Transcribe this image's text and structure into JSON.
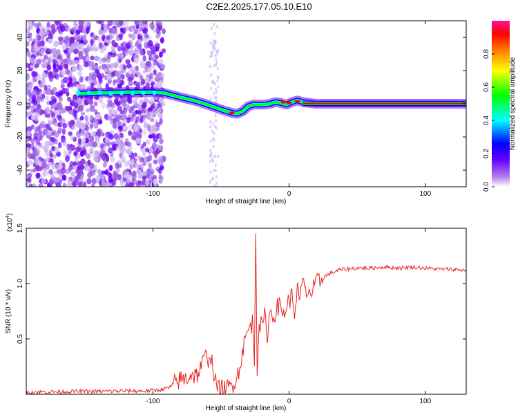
{
  "title": "C2E2.2025.177.05.10.E10",
  "chart_data": [
    {
      "type": "heatmap",
      "title": "C2E2.2025.177.05.10.E10",
      "xlabel": "Height of straight line (km)",
      "ylabel": "Frequency (Hz)",
      "xlim": [
        -193,
        130
      ],
      "ylim": [
        -50,
        50
      ],
      "x_ticks": [
        -100,
        0,
        100
      ],
      "x_tick_labels": [
        "-100",
        "0",
        "100"
      ],
      "y_ticks": [
        -40,
        -20,
        0,
        20,
        40
      ],
      "y_tick_labels": [
        "-40",
        "-20",
        "0",
        "20",
        "40"
      ],
      "colorbar": {
        "label": "Normalized spectral amplitude",
        "range": [
          0,
          1
        ],
        "ticks": [
          0.0,
          0.2,
          0.4,
          0.6,
          0.8
        ],
        "tick_labels": [
          "0.0",
          "0.2",
          "0.4",
          "0.6",
          "0.8"
        ],
        "colormap": [
          "#ffffff",
          "#8a2be2",
          "#0000ff",
          "#00ffff",
          "#00ff00",
          "#ffff00",
          "#ff8000",
          "#ff0000",
          "#ff1493"
        ]
      },
      "ridge": {
        "x": [
          -155,
          -140,
          -120,
          -100,
          -92,
          -85,
          -78,
          -70,
          -62,
          -55,
          -48,
          -42,
          -38,
          -34,
          -30,
          -26,
          -22,
          -18,
          -14,
          -10,
          -6,
          -2,
          2,
          6,
          10,
          20,
          40,
          60,
          80,
          100,
          120,
          130
        ],
        "y": [
          6,
          6.5,
          7,
          7,
          6.5,
          5,
          3.5,
          2,
          0,
          -2,
          -4,
          -5.5,
          -6,
          -4.5,
          -1.5,
          -0.5,
          -0.5,
          -0.5,
          0,
          1,
          0.5,
          -0.5,
          1,
          2,
          1,
          0,
          0,
          0,
          0,
          0,
          0,
          0
        ]
      },
      "grid": false
    },
    {
      "type": "line",
      "xlabel": "Height of straight line (km)",
      "ylabel": "SNR (10 * v/v)",
      "y_multiplier_label": "(x10",
      "y_multiplier_exp": "4",
      "xlim": [
        -193,
        130
      ],
      "ylim": [
        0,
        1.5
      ],
      "x_ticks": [
        -100,
        0,
        100
      ],
      "x_tick_labels": [
        "-100",
        "0",
        "100"
      ],
      "y_ticks": [
        0.5,
        1.0,
        1.5
      ],
      "y_tick_labels": [
        "0.5",
        "1.0",
        "1.5"
      ],
      "series": [
        {
          "color": "#e8231f",
          "x": [
            -193,
            -180,
            -160,
            -140,
            -120,
            -105,
            -95,
            -88,
            -84,
            -80,
            -76,
            -72,
            -68,
            -64,
            -62,
            -60,
            -58,
            -56,
            -54,
            -52,
            -48,
            -44,
            -40,
            -37,
            -35,
            -33,
            -31,
            -29,
            -27,
            -25.5,
            -24.5,
            -23.5,
            -22,
            -20,
            -18,
            -16,
            -14,
            -12,
            -10,
            -8,
            -6,
            -4,
            -2,
            0,
            2,
            4,
            6,
            8,
            10,
            12,
            14,
            16,
            18,
            20,
            22,
            25,
            28,
            32,
            36,
            40,
            50,
            60,
            70,
            80,
            90,
            100,
            110,
            120,
            130
          ],
          "y": [
            0.02,
            0.02,
            0.025,
            0.025,
            0.03,
            0.03,
            0.04,
            0.06,
            0.1,
            0.13,
            0.14,
            0.18,
            0.17,
            0.25,
            0.35,
            0.3,
            0.38,
            0.25,
            0.1,
            0.05,
            0.04,
            0.06,
            0.12,
            0.2,
            0.35,
            0.45,
            0.55,
            0.6,
            0.65,
            0.3,
            1.5,
            0.25,
            0.65,
            0.6,
            0.7,
            0.55,
            0.75,
            0.7,
            0.75,
            0.8,
            0.78,
            0.72,
            0.8,
            0.85,
            0.88,
            0.75,
            0.95,
            0.82,
            1.05,
            0.9,
            0.95,
            0.9,
            0.95,
            1.0,
            1.02,
            1.05,
            1.08,
            1.1,
            1.12,
            1.13,
            1.14,
            1.14,
            1.15,
            1.14,
            1.15,
            1.14,
            1.13,
            1.13,
            1.12
          ]
        }
      ],
      "grid": false
    }
  ]
}
